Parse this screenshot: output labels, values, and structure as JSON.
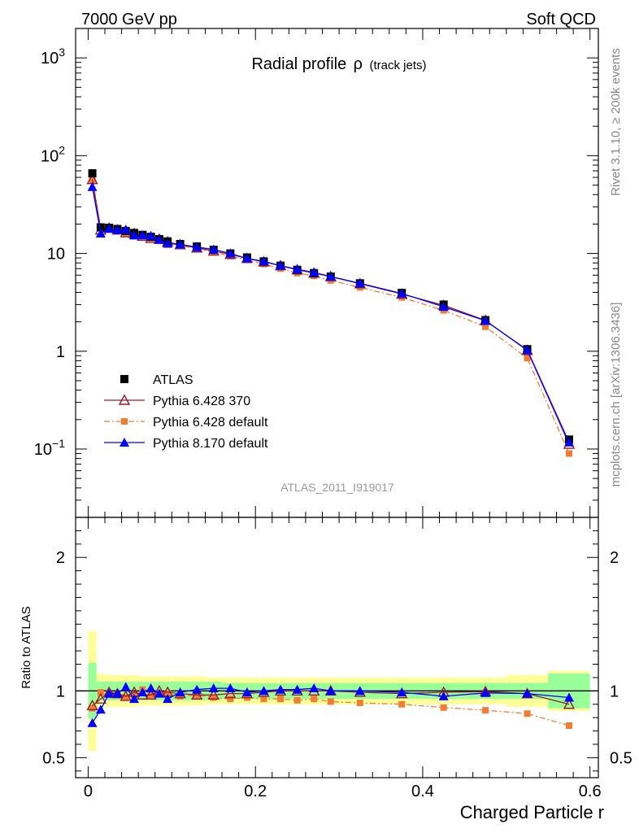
{
  "header": {
    "left": "7000 GeV pp",
    "right": "Soft QCD"
  },
  "title": {
    "main": "Radial profile",
    "symbol": "ρ",
    "sub": "(track jets)"
  },
  "side_labels": {
    "top": "Rivet 3.1.10, ≥ 200k events",
    "bottom": "mcplots.cern.ch [arXiv:1306.3436]"
  },
  "analysis_label": "ATLAS_2011_I919017",
  "xlabel": "Charged Particle r",
  "ratio_ylabel": "Ratio to ATLAS",
  "colors": {
    "atlas": "#000000",
    "p6_370": "#9b1b2a",
    "p6_default": "#f37c33",
    "p8_default": "#0000ff",
    "band_inner": "#99ff99",
    "band_outer": "#ffff99"
  },
  "chart_data": [
    {
      "type": "line",
      "panel": "main",
      "yscale": "log",
      "xlim": [
        -0.015,
        0.61
      ],
      "ylim": [
        0.02,
        2000
      ],
      "yticks": [
        {
          "value": 0.1,
          "base": "10",
          "exp": "−1"
        },
        {
          "value": 1,
          "label": "1"
        },
        {
          "value": 10,
          "label": "10"
        },
        {
          "value": 100,
          "base": "10",
          "exp": "2"
        },
        {
          "value": 1000,
          "base": "10",
          "exp": "3"
        }
      ],
      "legend": [
        {
          "label": "ATLAS",
          "series": "atlas"
        },
        {
          "label": "Pythia 6.428 370",
          "series": "p6_370"
        },
        {
          "label": "Pythia 6.428 default",
          "series": "p6_default"
        },
        {
          "label": "Pythia 8.170 default",
          "series": "p8_default"
        }
      ],
      "x": [
        0.005,
        0.015,
        0.025,
        0.035,
        0.045,
        0.055,
        0.065,
        0.075,
        0.085,
        0.095,
        0.11,
        0.13,
        0.15,
        0.17,
        0.19,
        0.21,
        0.23,
        0.25,
        0.27,
        0.29,
        0.325,
        0.375,
        0.425,
        0.475,
        0.525,
        0.575
      ],
      "series": [
        {
          "key": "atlas",
          "marker": "square",
          "values": [
            66,
            18.5,
            18.3,
            17.8,
            17,
            16.2,
            15.5,
            14.8,
            14,
            13.3,
            12.5,
            11.8,
            10.9,
            10,
            9.1,
            8.3,
            7.5,
            6.8,
            6.3,
            5.8,
            4.95,
            3.95,
            3.0,
            2.08,
            1.05,
            0.125
          ]
        },
        {
          "key": "p6_370",
          "marker": "open-triangle",
          "values": [
            57,
            17.4,
            18.2,
            17.4,
            16.3,
            16,
            15,
            14.3,
            14,
            13.1,
            12.3,
            11.4,
            10.6,
            9.8,
            8.9,
            8.2,
            7.5,
            6.8,
            6.3,
            5.8,
            4.9,
            3.85,
            2.95,
            2.07,
            1.02,
            0.112
          ]
        },
        {
          "key": "p6_default",
          "marker": "small-square",
          "dash": "dashdot",
          "values": [
            56.5,
            18.4,
            17.7,
            17.2,
            16.1,
            15.7,
            15.3,
            14.3,
            13.7,
            13,
            12,
            11.2,
            10.3,
            9.4,
            8.6,
            7.8,
            7.0,
            6.3,
            5.9,
            5.3,
            4.5,
            3.55,
            2.62,
            1.78,
            0.85,
            0.09
          ]
        },
        {
          "key": "p8_default",
          "marker": "filled-triangle",
          "values": [
            48,
            16,
            17.9,
            17.4,
            17.6,
            15.3,
            15.3,
            15.2,
            13.8,
            12.6,
            12.4,
            11.6,
            11.0,
            10.0,
            8.9,
            8.3,
            7.5,
            6.9,
            6.4,
            5.8,
            4.95,
            3.9,
            2.85,
            2.05,
            1.03,
            0.117
          ]
        }
      ]
    },
    {
      "type": "line",
      "panel": "ratio",
      "xlim": [
        -0.015,
        0.61
      ],
      "ylim": [
        0.35,
        2.3
      ],
      "yticks": [
        0.5,
        1,
        2
      ],
      "xticks": [
        0,
        0.2,
        0.4,
        0.6
      ],
      "x": [
        0.005,
        0.015,
        0.025,
        0.035,
        0.045,
        0.055,
        0.065,
        0.075,
        0.085,
        0.095,
        0.11,
        0.13,
        0.15,
        0.17,
        0.19,
        0.21,
        0.23,
        0.25,
        0.27,
        0.29,
        0.325,
        0.375,
        0.425,
        0.475,
        0.525,
        0.575
      ],
      "bands": {
        "bins": [
          0.0,
          0.01,
          0.02,
          0.03,
          0.04,
          0.05,
          0.06,
          0.07,
          0.08,
          0.09,
          0.1,
          0.12,
          0.14,
          0.16,
          0.18,
          0.2,
          0.22,
          0.24,
          0.26,
          0.28,
          0.3,
          0.35,
          0.4,
          0.45,
          0.5,
          0.55,
          0.6
        ],
        "inner": [
          0.21,
          0.07,
          0.07,
          0.07,
          0.07,
          0.07,
          0.07,
          0.07,
          0.07,
          0.07,
          0.07,
          0.07,
          0.07,
          0.06,
          0.06,
          0.06,
          0.06,
          0.06,
          0.06,
          0.06,
          0.06,
          0.06,
          0.06,
          0.06,
          0.06,
          0.13
        ],
        "outer": [
          0.45,
          0.13,
          0.12,
          0.12,
          0.12,
          0.12,
          0.11,
          0.11,
          0.11,
          0.11,
          0.11,
          0.11,
          0.1,
          0.1,
          0.1,
          0.1,
          0.1,
          0.1,
          0.1,
          0.1,
          0.1,
          0.1,
          0.1,
          0.1,
          0.12,
          0.15
        ]
      },
      "series": [
        {
          "key": "p6_370",
          "marker": "open-triangle",
          "values": [
            0.89,
            0.94,
            0.99,
            0.98,
            0.96,
            0.99,
            0.97,
            0.97,
            1.0,
            0.99,
            0.98,
            0.97,
            0.97,
            0.98,
            0.98,
            0.99,
            1.0,
            1.0,
            1.0,
            1.0,
            0.99,
            0.98,
            0.99,
            0.995,
            0.98,
            0.9
          ]
        },
        {
          "key": "p6_default",
          "marker": "small-square",
          "dash": "dashdot",
          "values": [
            0.87,
            0.99,
            0.97,
            0.97,
            0.95,
            0.97,
            1.01,
            0.97,
            0.98,
            0.98,
            0.96,
            0.97,
            0.95,
            0.94,
            0.95,
            0.94,
            0.94,
            0.93,
            0.94,
            0.92,
            0.91,
            0.9,
            0.875,
            0.855,
            0.83,
            0.74
          ]
        },
        {
          "key": "p8_default",
          "marker": "filled-triangle",
          "values": [
            0.76,
            0.86,
            0.98,
            0.98,
            1.03,
            0.94,
            0.99,
            1.02,
            0.98,
            0.94,
            0.99,
            1.01,
            1.02,
            1.02,
            0.99,
            1.0,
            1.01,
            1.01,
            1.02,
            1.0,
            1.0,
            0.99,
            0.96,
            0.985,
            0.98,
            0.95
          ]
        }
      ]
    }
  ]
}
